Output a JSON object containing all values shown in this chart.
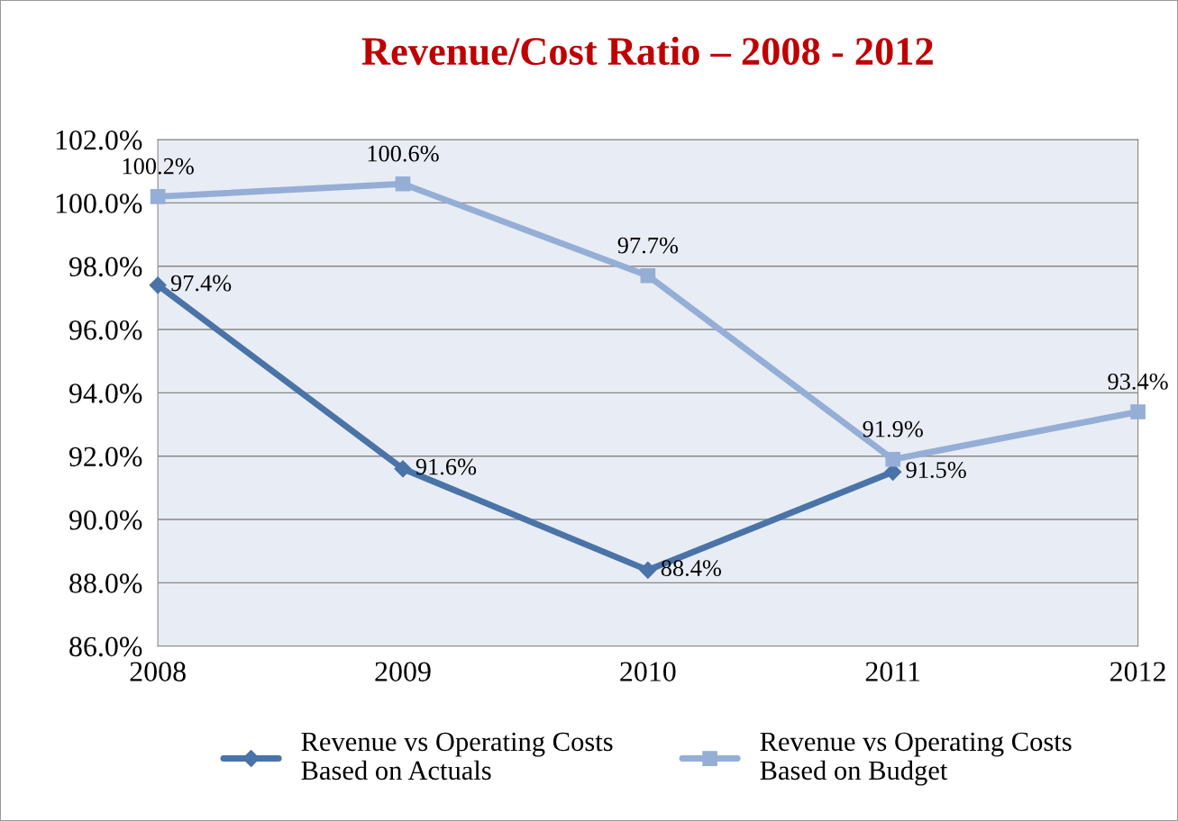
{
  "chart_data": {
    "type": "line",
    "title": "Revenue/Cost Ratio – 2008 - 2012",
    "categories": [
      "2008",
      "2009",
      "2010",
      "2011",
      "2012"
    ],
    "series": [
      {
        "name": "Revenue vs Operating Costs\nBased on Actuals",
        "color": "#4a73a8",
        "marker": "diamond",
        "values": [
          97.4,
          91.6,
          88.4,
          91.5,
          null
        ],
        "value_labels": [
          "97.4%",
          "91.6%",
          "88.4%",
          "91.5%",
          null
        ]
      },
      {
        "name": "Revenue vs Operating Costs\nBased on Budget",
        "color": "#95aed6",
        "marker": "square",
        "values": [
          100.2,
          100.6,
          97.7,
          91.9,
          93.4
        ],
        "value_labels": [
          "100.2%",
          "100.6%",
          "97.7%",
          "91.9%",
          "93.4%"
        ]
      }
    ],
    "ylim": [
      86,
      102
    ],
    "yticks": [
      {
        "value": 86,
        "label": "86.0%"
      },
      {
        "value": 88,
        "label": "88.0%"
      },
      {
        "value": 90,
        "label": "90.0%"
      },
      {
        "value": 92,
        "label": "92.0%"
      },
      {
        "value": 94,
        "label": "94.0%"
      },
      {
        "value": 96,
        "label": "96.0%"
      },
      {
        "value": 98,
        "label": "98.0%"
      },
      {
        "value": 100,
        "label": "100.0%"
      },
      {
        "value": 102,
        "label": "102.0%"
      }
    ],
    "grid": "y",
    "legend": "bottom",
    "line_style": "solid"
  }
}
